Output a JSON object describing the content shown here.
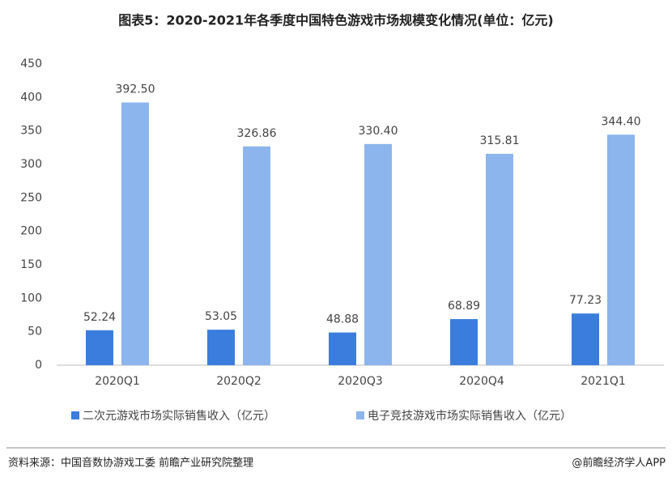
{
  "chart_data": {
    "type": "bar",
    "title": "图表5：2020-2021年各季度中国特色游戏市场规模变化情况(单位：亿元)",
    "categories": [
      "2020Q1",
      "2020Q2",
      "2020Q3",
      "2020Q4",
      "2021Q1"
    ],
    "series": [
      {
        "name": "二次元游戏市场实际销售收入（亿元）",
        "color": "#3b7ddd",
        "values": [
          52.24,
          53.05,
          48.88,
          68.89,
          77.23
        ],
        "value_labels": [
          "52.24",
          "53.05",
          "48.88",
          "68.89",
          "77.23"
        ]
      },
      {
        "name": "电子竞技游戏市场实际销售收入（亿元）",
        "color": "#8db5ed",
        "values": [
          392.5,
          326.86,
          330.4,
          315.81,
          344.4
        ],
        "value_labels": [
          "392.50",
          "326.86",
          "330.40",
          "315.81",
          "344.40"
        ]
      }
    ],
    "ylim": [
      0,
      450
    ],
    "yticks": [
      0,
      50,
      100,
      150,
      200,
      250,
      300,
      350,
      400,
      450
    ],
    "grid": false,
    "source": "资料来源：中国音数协游戏工委 前瞻产业研究院整理",
    "credit": "@前瞻经济学人APP"
  }
}
